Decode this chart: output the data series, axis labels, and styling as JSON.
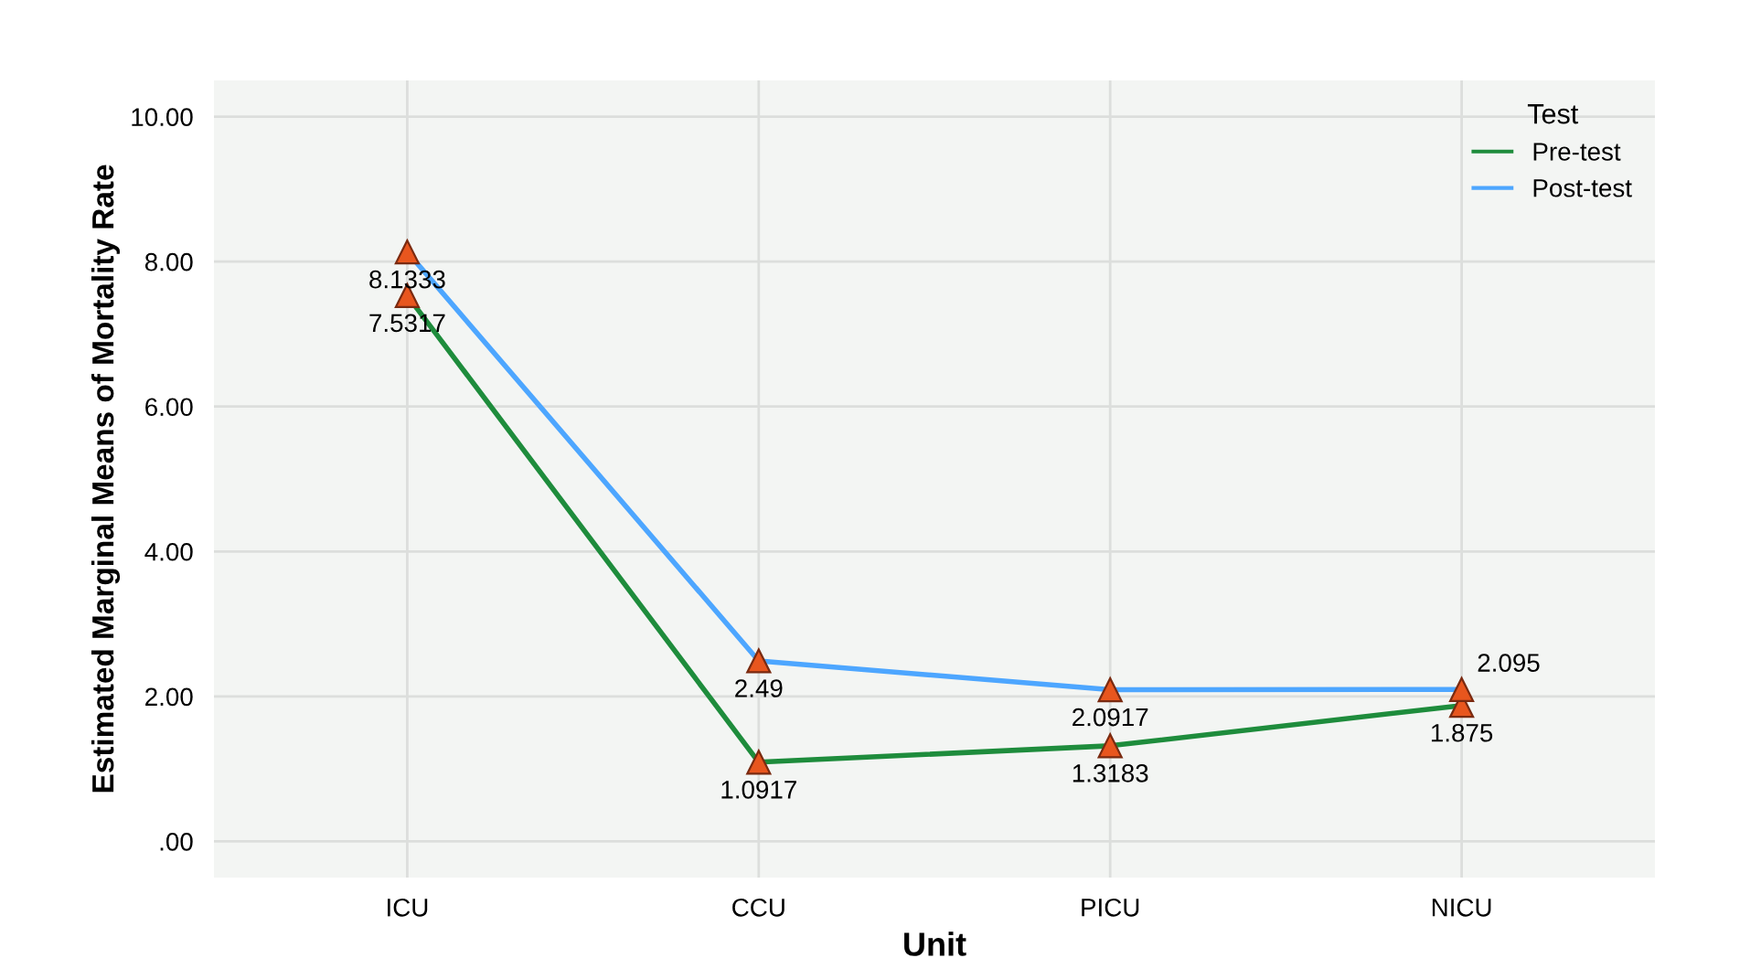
{
  "chart_data": {
    "type": "line",
    "xlabel": "Unit",
    "ylabel": "Estimated Marginal Means of Mortality Rate",
    "legend_title": "Test",
    "categories": [
      "ICU",
      "CCU",
      "PICU",
      "NICU"
    ],
    "series": [
      {
        "name": "Pre-test",
        "color": "#1e8c3c",
        "values": [
          7.5317,
          1.0917,
          1.3183,
          1.875
        ],
        "colors": [
          "#e8561e",
          "#e8561e",
          "#e8561e",
          "#e8561e"
        ]
      },
      {
        "name": "Post-test",
        "color": "#4da6ff",
        "values": [
          8.1333,
          2.49,
          2.0917,
          2.095
        ],
        "colors": [
          "#e8561e",
          "#e8561e",
          "#e8561e",
          "#e8561e"
        ]
      }
    ],
    "ylim": [
      -0.5,
      10.5
    ],
    "yticks": [
      {
        "value": 0,
        "label": ".00"
      },
      {
        "value": 2,
        "label": "2.00"
      },
      {
        "value": 4,
        "label": "4.00"
      },
      {
        "value": 6,
        "label": "6.00"
      },
      {
        "value": 8,
        "label": "8.00"
      },
      {
        "value": 10,
        "label": "10.00"
      }
    ],
    "grid": true,
    "legend": "top right",
    "marker": "triangle",
    "line_style": "solid",
    "data_labels": true
  }
}
